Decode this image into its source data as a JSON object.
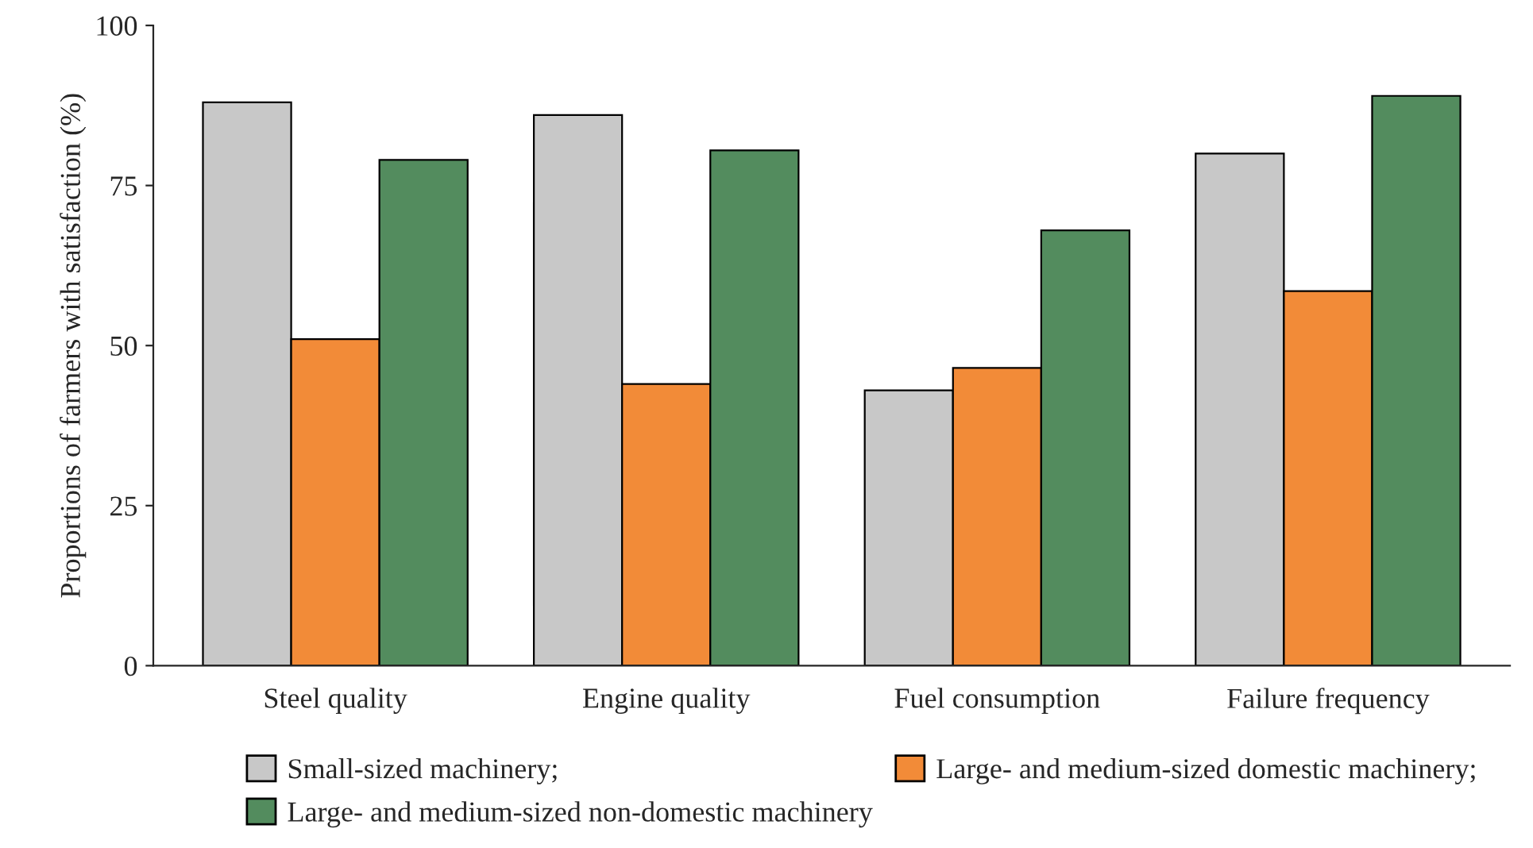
{
  "chart_data": {
    "type": "bar",
    "ylabel": "Proportions of farmers with satisfaction (%)",
    "categories": [
      "Steel quality",
      "Engine quality",
      "Fuel consumption",
      "Failure frequency"
    ],
    "series": [
      {
        "name": "Small-sized machinery;",
        "color": "#c8c8c8",
        "values": [
          88,
          86,
          43,
          80
        ]
      },
      {
        "name": "Large- and medium-sized domestic machinery;",
        "color": "#f28b38",
        "values": [
          51,
          44,
          46.5,
          58.5
        ]
      },
      {
        "name": "Large- and medium-sized non-domestic machinery",
        "color": "#538c5e",
        "values": [
          79,
          80.5,
          68,
          89
        ]
      }
    ],
    "ylim": [
      0,
      100
    ],
    "yticks": [
      0,
      25,
      50,
      75,
      100
    ],
    "grid": false,
    "legend": "bottom"
  }
}
